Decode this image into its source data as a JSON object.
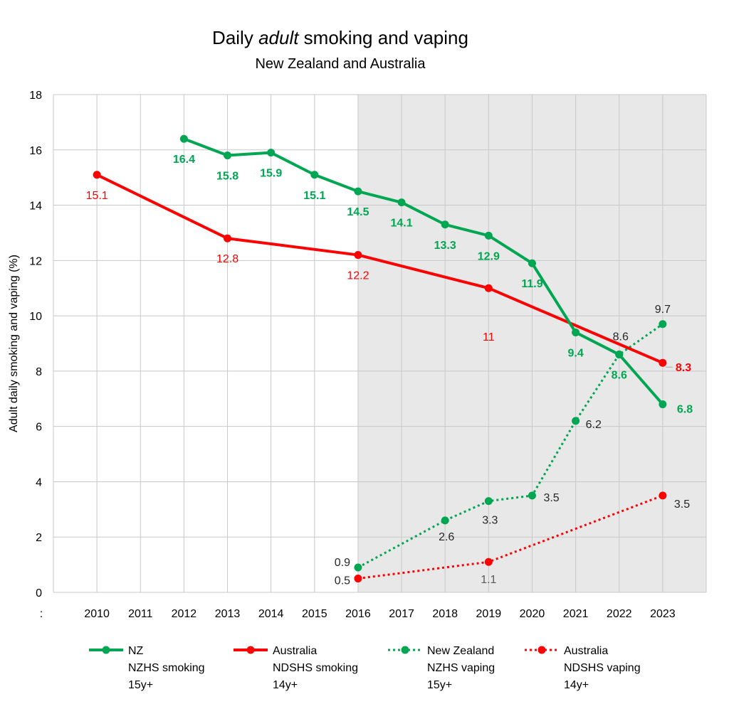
{
  "chart_data": {
    "type": "line",
    "title_parts": [
      "Daily ",
      "adult",
      " smoking and vaping"
    ],
    "subtitle": "New Zealand and Australia",
    "ylabel": "Adult daily smoking and vaping (%)",
    "x_extra_label": ":",
    "ylim": [
      0,
      18
    ],
    "yticks": [
      "0",
      "2",
      "4",
      "6",
      "8",
      "10",
      "12",
      "14",
      "16",
      "18"
    ],
    "categories": [
      "2010",
      "2011",
      "2012",
      "2013",
      "2014",
      "2015",
      "2016",
      "2017",
      "2018",
      "2019",
      "2020",
      "2021",
      "2022",
      "2023"
    ],
    "shaded_from": "2016",
    "grid": true,
    "legend_position": "bottom",
    "series": [
      {
        "name": "NZ",
        "legend_lines": [
          "NZ",
          "NZHS smoking",
          "15y+"
        ],
        "color": "#00A651",
        "style": "solid",
        "points": [
          {
            "x": "2012",
            "y": 16.4,
            "label": "16.4"
          },
          {
            "x": "2013",
            "y": 15.8,
            "label": "15.8"
          },
          {
            "x": "2014",
            "y": 15.9,
            "label": "15.9"
          },
          {
            "x": "2015",
            "y": 15.1,
            "label": "15.1"
          },
          {
            "x": "2016",
            "y": 14.5,
            "label": "14.5"
          },
          {
            "x": "2017",
            "y": 14.1,
            "label": "14.1"
          },
          {
            "x": "2018",
            "y": 13.3,
            "label": "13.3"
          },
          {
            "x": "2019",
            "y": 12.9,
            "label": "12.9"
          },
          {
            "x": "2020",
            "y": 11.9,
            "label": "11.9"
          },
          {
            "x": "2021",
            "y": 9.4,
            "label": "9.4"
          },
          {
            "x": "2022",
            "y": 8.6,
            "label": "8.6"
          },
          {
            "x": "2023",
            "y": 6.8,
            "label": "6.8"
          }
        ]
      },
      {
        "name": "Australia",
        "legend_lines": [
          "Australia",
          "NDSHS smoking",
          "14y+"
        ],
        "color": "#FF0000",
        "style": "solid",
        "points": [
          {
            "x": "2010",
            "y": 15.1,
            "label": "15.1"
          },
          {
            "x": "2013",
            "y": 12.8,
            "label": "12.8"
          },
          {
            "x": "2016",
            "y": 12.2,
            "label": "12.2"
          },
          {
            "x": "2019",
            "y": 11.0,
            "label": "11"
          },
          {
            "x": "2023",
            "y": 8.3,
            "label": "8.3"
          }
        ]
      },
      {
        "name": "New Zealand",
        "legend_lines": [
          "New Zealand",
          "NZHS vaping",
          "15y+"
        ],
        "color": "#00A651",
        "style": "dotted",
        "points": [
          {
            "x": "2016",
            "y": 0.9,
            "label": "0.9"
          },
          {
            "x": "2018",
            "y": 2.6,
            "label": "2.6"
          },
          {
            "x": "2019",
            "y": 3.3,
            "label": "3.3"
          },
          {
            "x": "2020",
            "y": 3.5,
            "label": "3.5"
          },
          {
            "x": "2021",
            "y": 6.2,
            "label": "6.2"
          },
          {
            "x": "2022",
            "y": 8.6,
            "label": "8.6"
          },
          {
            "x": "2023",
            "y": 9.7,
            "label": "9.7"
          }
        ]
      },
      {
        "name": "Australia",
        "legend_lines": [
          "Australia",
          "NDSHS vaping",
          "14y+"
        ],
        "color": "#FF0000",
        "style": "dotted",
        "points": [
          {
            "x": "2016",
            "y": 0.5,
            "label": "0.5"
          },
          {
            "x": "2019",
            "y": 1.1,
            "label": "1.1"
          },
          {
            "x": "2023",
            "y": 3.5,
            "label": "3.5"
          }
        ]
      }
    ]
  }
}
